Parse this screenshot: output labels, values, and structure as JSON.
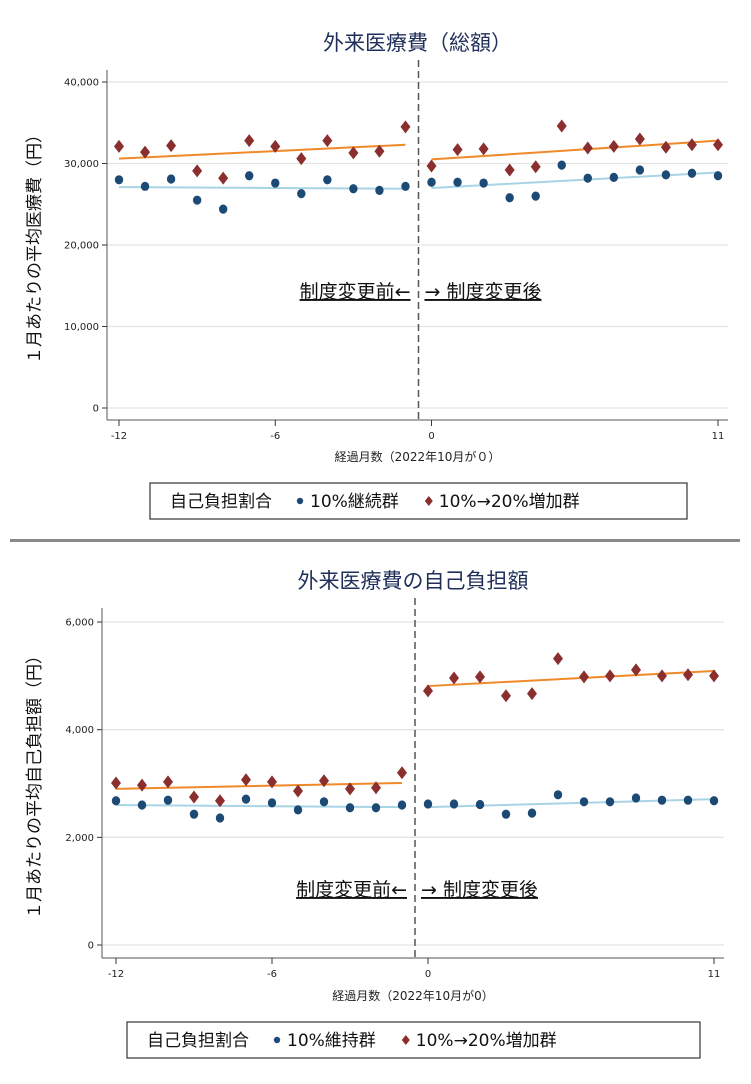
{
  "chart_data": [
    {
      "type": "scatter",
      "title": "外来医療費（総額）",
      "xlabel": "経過月数（2022年10月が０）",
      "ylabel": "１月あたりの平均医療費（円）",
      "xlim": [
        -12,
        11
      ],
      "ylim": [
        0,
        40000
      ],
      "xticks": [
        -12,
        -6,
        0,
        11
      ],
      "yticks": [
        0,
        10000,
        20000,
        30000,
        40000
      ],
      "ytick_labels": [
        "0",
        "10,000",
        "20,000",
        "30,000",
        "40,000"
      ],
      "grid": true,
      "cutoff_line_x": -0.5,
      "annotation_left": "制度変更前←",
      "annotation_right": "→ 制度変更後",
      "legend": {
        "title": "自己負担割合",
        "placement": "bottom"
      },
      "x": [
        -12,
        -11,
        -10,
        -9,
        -8,
        -7,
        -6,
        -5,
        -4,
        -3,
        -2,
        -1,
        0,
        1,
        2,
        3,
        4,
        5,
        6,
        7,
        8,
        9,
        10,
        11
      ],
      "series": [
        {
          "name": "10%継続群",
          "marker": "circle",
          "color": "#1c4a74",
          "fit_color": "#a8d4e6",
          "values": [
            28000,
            27200,
            28100,
            25500,
            24400,
            28500,
            27600,
            26300,
            28000,
            26900,
            26700,
            27200,
            27700,
            27700,
            27600,
            25800,
            26000,
            29800,
            28200,
            28300,
            29200,
            28600,
            28800,
            28500
          ],
          "fit_pre": [
            27100,
            26900
          ],
          "fit_post": [
            27000,
            28900
          ]
        },
        {
          "name": "10%→20%増加群",
          "marker": "diamond",
          "color": "#8b2e2e",
          "fit_color": "#f0892a",
          "values": [
            32100,
            31400,
            32200,
            29100,
            28200,
            32800,
            32100,
            30600,
            32800,
            31300,
            31500,
            34500,
            29700,
            31700,
            31800,
            29200,
            29600,
            34600,
            31900,
            32100,
            33000,
            32000,
            32300,
            32300
          ],
          "fit_pre": [
            30600,
            32300
          ],
          "fit_post": [
            30500,
            32800
          ]
        }
      ]
    },
    {
      "type": "scatter",
      "title": "外来医療費の自己負担額",
      "xlabel": "経過月数（2022年10月が0）",
      "ylabel": "１月あたりの平均自己負担額（円）",
      "xlim": [
        -12,
        11
      ],
      "ylim": [
        0,
        6000
      ],
      "xticks": [
        -12,
        -6,
        0,
        11
      ],
      "yticks": [
        0,
        2000,
        4000,
        6000
      ],
      "ytick_labels": [
        "0",
        "2,000",
        "4,000",
        "6,000"
      ],
      "grid": true,
      "cutoff_line_x": -0.5,
      "annotation_left": "制度変更前←",
      "annotation_right": "→ 制度変更後",
      "legend": {
        "title": "自己負担割合",
        "placement": "bottom"
      },
      "x": [
        -12,
        -11,
        -10,
        -9,
        -8,
        -7,
        -6,
        -5,
        -4,
        -3,
        -2,
        -1,
        0,
        1,
        2,
        3,
        4,
        5,
        6,
        7,
        8,
        9,
        10,
        11
      ],
      "series": [
        {
          "name": "10%維持群",
          "marker": "circle",
          "color": "#1c4a74",
          "fit_color": "#a8d4e6",
          "values": [
            2680,
            2600,
            2690,
            2430,
            2360,
            2710,
            2640,
            2510,
            2660,
            2550,
            2550,
            2600,
            2620,
            2620,
            2610,
            2430,
            2450,
            2790,
            2660,
            2660,
            2730,
            2690,
            2690,
            2680
          ],
          "fit_pre": [
            2600,
            2560
          ],
          "fit_post": [
            2560,
            2710
          ]
        },
        {
          "name": "10%→20%増加群",
          "marker": "diamond",
          "color": "#8b2e2e",
          "fit_color": "#f0892a",
          "values": [
            3010,
            2970,
            3030,
            2750,
            2680,
            3070,
            3030,
            2860,
            3050,
            2900,
            2920,
            3200,
            4720,
            4960,
            4980,
            4630,
            4670,
            5320,
            4980,
            5000,
            5110,
            5000,
            5020,
            5000
          ],
          "fit_pre": [
            2900,
            3010
          ],
          "fit_post": [
            4810,
            5090
          ]
        }
      ]
    }
  ]
}
